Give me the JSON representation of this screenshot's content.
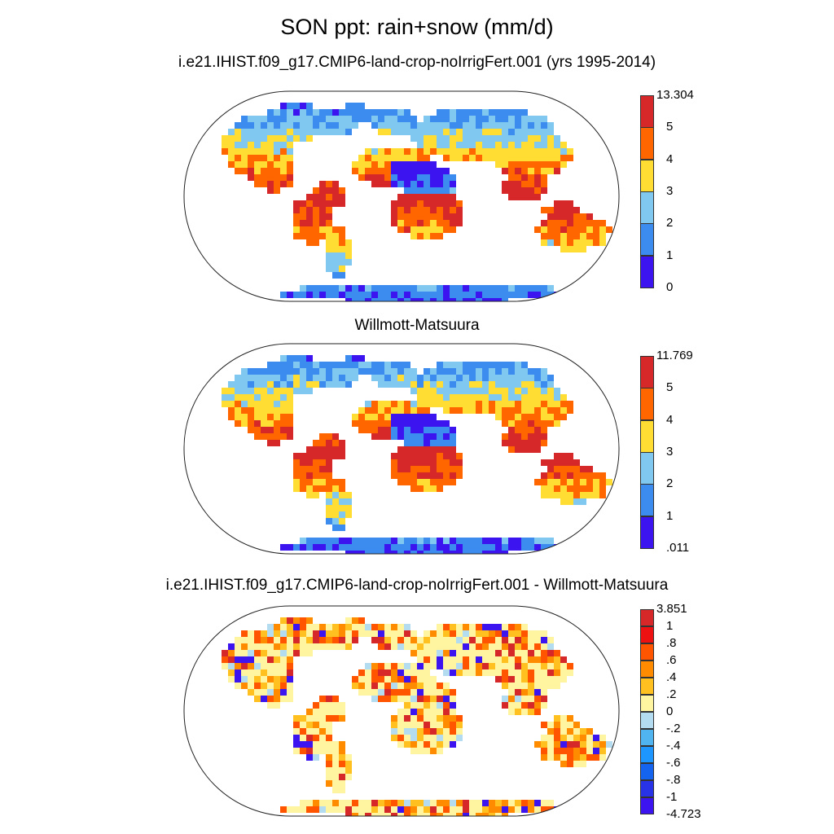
{
  "title": "SON ppt: rain+snow (mm/d)",
  "panels": [
    {
      "id": "model",
      "subtitle": "i.e21.IHIST.f09_g17.CMIP6-land-crop-noIrrigFert.001 (yrs 1995-2014)",
      "colorbar": {
        "labels": [
          "13.304",
          "5",
          "4",
          "3",
          "2",
          "1",
          "0"
        ],
        "colors": [
          "#d62828",
          "#ff6600",
          "#ffdd33",
          "#80c8f0",
          "#3c8cf0",
          "#3c14f0"
        ]
      }
    },
    {
      "id": "obs",
      "subtitle": "Willmott-Matsuura",
      "colorbar": {
        "labels": [
          "11.769",
          "5",
          "4",
          "3",
          "2",
          "1",
          ".011"
        ],
        "colors": [
          "#d62828",
          "#ff6600",
          "#ffdd33",
          "#80c8f0",
          "#3c8cf0",
          "#3c14f0"
        ]
      }
    },
    {
      "id": "diff",
      "subtitle": "i.e21.IHIST.f09_g17.CMIP6-land-crop-noIrrigFert.001 - Willmott-Matsuura",
      "colorbar": {
        "labels": [
          "3.851",
          "1",
          ".8",
          ".6",
          ".4",
          ".2",
          "0",
          "-.2",
          "-.4",
          "-.6",
          "-.8",
          "-1",
          "-4.723"
        ],
        "colors": [
          "#d62828",
          "#ee1111",
          "#ff5500",
          "#ff8c00",
          "#ffc020",
          "#fff5a0",
          "#b4dcf0",
          "#50b4f0",
          "#1e96ff",
          "#1464f0",
          "#2832e6",
          "#3c14f0"
        ]
      }
    }
  ]
}
